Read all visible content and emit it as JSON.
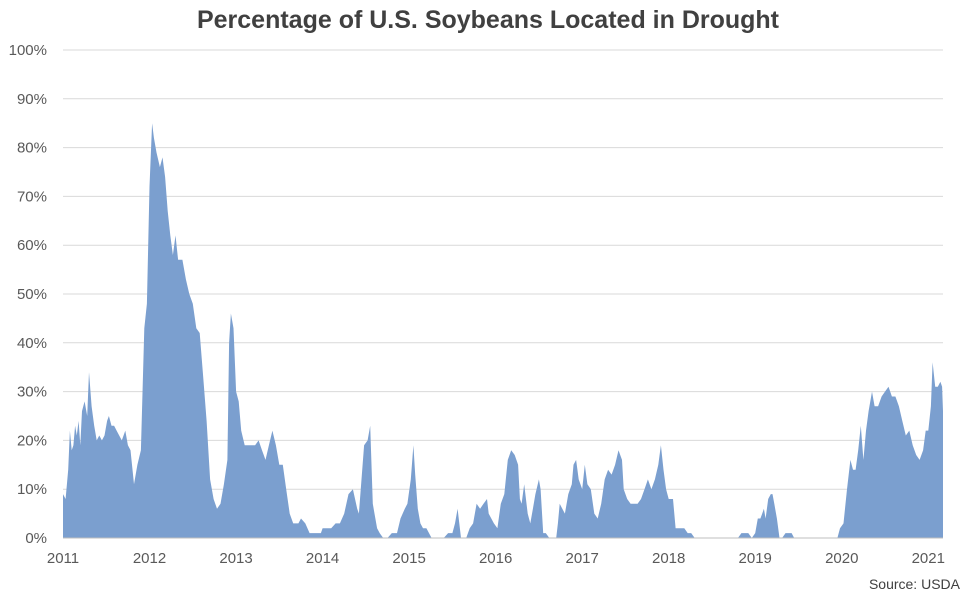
{
  "chart_data": {
    "type": "area",
    "title": "Percentage of U.S. Soybeans Located in Drought",
    "source": "Source: USDA",
    "ylim": [
      0,
      100
    ],
    "xlim": [
      2011,
      2021.17
    ],
    "y_ticks": [
      0,
      10,
      20,
      30,
      40,
      50,
      60,
      70,
      80,
      90,
      100
    ],
    "y_tick_labels": [
      "0%",
      "10%",
      "20%",
      "30%",
      "40%",
      "50%",
      "60%",
      "70%",
      "80%",
      "90%",
      "100%"
    ],
    "x_ticks": [
      2011,
      2012,
      2013,
      2014,
      2015,
      2016,
      2017,
      2018,
      2019,
      2020,
      2021
    ],
    "x_tick_labels": [
      "2011",
      "2012",
      "2013",
      "2014",
      "2015",
      "2016",
      "2017",
      "2018",
      "2019",
      "2020",
      "2021"
    ],
    "grid": true,
    "legend": "none",
    "fill_color": "#7b9fcf",
    "grid_color": "#d9d9d9",
    "series": [
      {
        "values": [
          [
            2011.0,
            9
          ],
          [
            2011.03,
            8
          ],
          [
            2011.06,
            14
          ],
          [
            2011.08,
            22
          ],
          [
            2011.1,
            18
          ],
          [
            2011.12,
            19
          ],
          [
            2011.14,
            23
          ],
          [
            2011.16,
            21
          ],
          [
            2011.18,
            24
          ],
          [
            2011.2,
            19
          ],
          [
            2011.22,
            26
          ],
          [
            2011.25,
            28
          ],
          [
            2011.28,
            25
          ],
          [
            2011.3,
            34
          ],
          [
            2011.33,
            27
          ],
          [
            2011.36,
            23
          ],
          [
            2011.39,
            20
          ],
          [
            2011.42,
            21
          ],
          [
            2011.45,
            20
          ],
          [
            2011.48,
            21
          ],
          [
            2011.51,
            24
          ],
          [
            2011.53,
            25
          ],
          [
            2011.56,
            23
          ],
          [
            2011.59,
            23
          ],
          [
            2011.62,
            22
          ],
          [
            2011.65,
            21
          ],
          [
            2011.68,
            20
          ],
          [
            2011.72,
            22
          ],
          [
            2011.75,
            19
          ],
          [
            2011.78,
            18
          ],
          [
            2011.82,
            11
          ],
          [
            2011.86,
            15
          ],
          [
            2011.9,
            18
          ],
          [
            2011.94,
            43
          ],
          [
            2011.97,
            48
          ],
          [
            2012.0,
            72
          ],
          [
            2012.03,
            85
          ],
          [
            2012.05,
            82
          ],
          [
            2012.08,
            79
          ],
          [
            2012.12,
            76
          ],
          [
            2012.15,
            78
          ],
          [
            2012.18,
            74
          ],
          [
            2012.21,
            67
          ],
          [
            2012.24,
            62
          ],
          [
            2012.27,
            58
          ],
          [
            2012.3,
            62
          ],
          [
            2012.33,
            57
          ],
          [
            2012.38,
            57
          ],
          [
            2012.42,
            53
          ],
          [
            2012.46,
            50
          ],
          [
            2012.5,
            48
          ],
          [
            2012.54,
            43
          ],
          [
            2012.58,
            42
          ],
          [
            2012.62,
            33
          ],
          [
            2012.66,
            24
          ],
          [
            2012.7,
            12
          ],
          [
            2012.74,
            8
          ],
          [
            2012.78,
            6
          ],
          [
            2012.82,
            7
          ],
          [
            2012.86,
            11
          ],
          [
            2012.9,
            16
          ],
          [
            2012.92,
            40
          ],
          [
            2012.94,
            46
          ],
          [
            2012.97,
            43
          ],
          [
            2013.0,
            30
          ],
          [
            2013.03,
            28
          ],
          [
            2013.06,
            22
          ],
          [
            2013.1,
            19
          ],
          [
            2013.14,
            19
          ],
          [
            2013.18,
            19
          ],
          [
            2013.22,
            19
          ],
          [
            2013.26,
            20
          ],
          [
            2013.3,
            18
          ],
          [
            2013.34,
            16
          ],
          [
            2013.38,
            19
          ],
          [
            2013.42,
            22
          ],
          [
            2013.46,
            19
          ],
          [
            2013.5,
            15
          ],
          [
            2013.54,
            15
          ],
          [
            2013.58,
            10
          ],
          [
            2013.62,
            5
          ],
          [
            2013.66,
            3
          ],
          [
            2013.72,
            3
          ],
          [
            2013.75,
            4
          ],
          [
            2013.8,
            3
          ],
          [
            2013.85,
            1
          ],
          [
            2013.92,
            1
          ],
          [
            2013.98,
            1
          ],
          [
            2014.0,
            2
          ],
          [
            2014.05,
            2
          ],
          [
            2014.1,
            2
          ],
          [
            2014.15,
            3
          ],
          [
            2014.2,
            3
          ],
          [
            2014.25,
            5
          ],
          [
            2014.3,
            9
          ],
          [
            2014.35,
            10
          ],
          [
            2014.4,
            6
          ],
          [
            2014.42,
            5
          ],
          [
            2014.45,
            12
          ],
          [
            2014.48,
            19
          ],
          [
            2014.52,
            20
          ],
          [
            2014.55,
            23
          ],
          [
            2014.58,
            7
          ],
          [
            2014.6,
            5
          ],
          [
            2014.63,
            2
          ],
          [
            2014.66,
            1
          ],
          [
            2014.7,
            0
          ],
          [
            2014.75,
            0
          ],
          [
            2014.8,
            1
          ],
          [
            2014.86,
            1
          ],
          [
            2014.9,
            4
          ],
          [
            2014.95,
            6
          ],
          [
            2014.98,
            7
          ],
          [
            2015.02,
            12
          ],
          [
            2015.05,
            19
          ],
          [
            2015.07,
            13
          ],
          [
            2015.1,
            6
          ],
          [
            2015.13,
            3
          ],
          [
            2015.16,
            2
          ],
          [
            2015.2,
            2
          ],
          [
            2015.23,
            1
          ],
          [
            2015.26,
            0
          ],
          [
            2015.4,
            0
          ],
          [
            2015.45,
            1
          ],
          [
            2015.5,
            1
          ],
          [
            2015.53,
            3
          ],
          [
            2015.56,
            6
          ],
          [
            2015.58,
            3
          ],
          [
            2015.6,
            0
          ],
          [
            2015.66,
            0
          ],
          [
            2015.7,
            2
          ],
          [
            2015.74,
            3
          ],
          [
            2015.78,
            7
          ],
          [
            2015.82,
            6
          ],
          [
            2015.86,
            7
          ],
          [
            2015.9,
            8
          ],
          [
            2015.92,
            5
          ],
          [
            2015.95,
            4
          ],
          [
            2015.98,
            3
          ],
          [
            2016.02,
            2
          ],
          [
            2016.06,
            7
          ],
          [
            2016.1,
            9
          ],
          [
            2016.14,
            16
          ],
          [
            2016.18,
            18
          ],
          [
            2016.22,
            17
          ],
          [
            2016.26,
            15
          ],
          [
            2016.28,
            8
          ],
          [
            2016.3,
            7
          ],
          [
            2016.33,
            11
          ],
          [
            2016.37,
            5
          ],
          [
            2016.4,
            3
          ],
          [
            2016.43,
            6
          ],
          [
            2016.46,
            9
          ],
          [
            2016.5,
            12
          ],
          [
            2016.52,
            10
          ],
          [
            2016.55,
            1
          ],
          [
            2016.58,
            1
          ],
          [
            2016.62,
            0
          ],
          [
            2016.7,
            0
          ],
          [
            2016.72,
            3
          ],
          [
            2016.74,
            7
          ],
          [
            2016.77,
            6
          ],
          [
            2016.8,
            5
          ],
          [
            2016.84,
            9
          ],
          [
            2016.88,
            11
          ],
          [
            2016.9,
            15
          ],
          [
            2016.93,
            16
          ],
          [
            2016.96,
            12
          ],
          [
            2017.0,
            10
          ],
          [
            2017.03,
            15
          ],
          [
            2017.06,
            11
          ],
          [
            2017.1,
            10
          ],
          [
            2017.14,
            5
          ],
          [
            2017.18,
            4
          ],
          [
            2017.22,
            7
          ],
          [
            2017.26,
            12
          ],
          [
            2017.3,
            14
          ],
          [
            2017.34,
            13
          ],
          [
            2017.38,
            15
          ],
          [
            2017.42,
            18
          ],
          [
            2017.46,
            16
          ],
          [
            2017.48,
            10
          ],
          [
            2017.52,
            8
          ],
          [
            2017.56,
            7
          ],
          [
            2017.6,
            7
          ],
          [
            2017.64,
            7
          ],
          [
            2017.68,
            8
          ],
          [
            2017.72,
            10
          ],
          [
            2017.76,
            12
          ],
          [
            2017.8,
            10
          ],
          [
            2017.84,
            12
          ],
          [
            2017.88,
            15
          ],
          [
            2017.91,
            19
          ],
          [
            2017.94,
            14
          ],
          [
            2017.97,
            10
          ],
          [
            2018.0,
            8
          ],
          [
            2018.05,
            8
          ],
          [
            2018.08,
            2
          ],
          [
            2018.12,
            2
          ],
          [
            2018.18,
            2
          ],
          [
            2018.22,
            1
          ],
          [
            2018.26,
            1
          ],
          [
            2018.3,
            0
          ],
          [
            2018.8,
            0
          ],
          [
            2018.84,
            1
          ],
          [
            2018.92,
            1
          ],
          [
            2018.96,
            0
          ],
          [
            2019.0,
            1
          ],
          [
            2019.03,
            4
          ],
          [
            2019.06,
            4
          ],
          [
            2019.08,
            5
          ],
          [
            2019.1,
            6
          ],
          [
            2019.12,
            4
          ],
          [
            2019.15,
            8
          ],
          [
            2019.18,
            9
          ],
          [
            2019.2,
            9
          ],
          [
            2019.22,
            7
          ],
          [
            2019.25,
            4
          ],
          [
            2019.28,
            0
          ],
          [
            2019.31,
            0
          ],
          [
            2019.35,
            1
          ],
          [
            2019.42,
            1
          ],
          [
            2019.45,
            0
          ],
          [
            2019.95,
            0
          ],
          [
            2019.98,
            2
          ],
          [
            2020.02,
            3
          ],
          [
            2020.06,
            10
          ],
          [
            2020.1,
            16
          ],
          [
            2020.13,
            14
          ],
          [
            2020.16,
            14
          ],
          [
            2020.19,
            18
          ],
          [
            2020.22,
            23
          ],
          [
            2020.25,
            16
          ],
          [
            2020.28,
            22
          ],
          [
            2020.31,
            26
          ],
          [
            2020.35,
            30
          ],
          [
            2020.38,
            27
          ],
          [
            2020.42,
            27
          ],
          [
            2020.46,
            29
          ],
          [
            2020.5,
            30
          ],
          [
            2020.54,
            31
          ],
          [
            2020.58,
            29
          ],
          [
            2020.62,
            29
          ],
          [
            2020.66,
            27
          ],
          [
            2020.7,
            24
          ],
          [
            2020.74,
            21
          ],
          [
            2020.78,
            22
          ],
          [
            2020.82,
            19
          ],
          [
            2020.86,
            17
          ],
          [
            2020.9,
            16
          ],
          [
            2020.94,
            18
          ],
          [
            2020.97,
            22
          ],
          [
            2021.0,
            22
          ],
          [
            2021.03,
            27
          ],
          [
            2021.05,
            36
          ],
          [
            2021.08,
            31
          ],
          [
            2021.11,
            31
          ],
          [
            2021.14,
            32
          ],
          [
            2021.16,
            31
          ],
          [
            2021.17,
            26
          ]
        ]
      }
    ]
  }
}
